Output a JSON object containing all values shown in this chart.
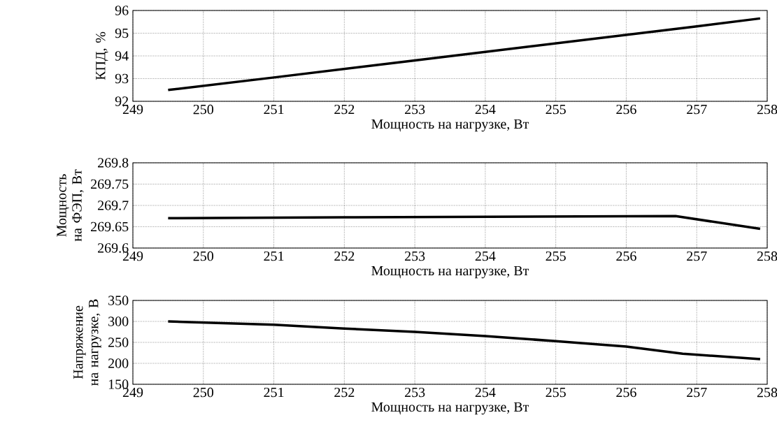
{
  "chart_data": [
    {
      "type": "line",
      "xlabel": "Мощность на нагрузке, Вт",
      "ylabel": "КПД, %",
      "color": "#000000",
      "grid": true,
      "x": [
        249.5,
        251,
        253,
        255,
        257,
        257.9
      ],
      "values": [
        92.5,
        93.05,
        93.8,
        94.55,
        95.3,
        95.65
      ],
      "xlim": [
        249,
        258
      ],
      "ylim": [
        92,
        96
      ],
      "xticks": [
        249,
        250,
        251,
        252,
        253,
        254,
        255,
        256,
        257,
        258
      ],
      "yticks": [
        92,
        93,
        94,
        95,
        96
      ]
    },
    {
      "type": "line",
      "xlabel": "Мощность на нагрузке, Вт",
      "ylabel": "Мощность на ФЭП, Вт",
      "color": "#000000",
      "grid": true,
      "x": [
        249.5,
        252,
        256.7,
        257.9
      ],
      "values": [
        269.67,
        269.672,
        269.675,
        269.645
      ],
      "xlim": [
        249,
        258
      ],
      "ylim": [
        269.6,
        269.8
      ],
      "xticks": [
        249,
        250,
        251,
        252,
        253,
        254,
        255,
        256,
        257,
        258
      ],
      "yticks": [
        269.6,
        269.65,
        269.7,
        269.75,
        269.8
      ]
    },
    {
      "type": "line",
      "xlabel": "Мощность на нагрузке, Вт",
      "ylabel": "Напряжение на нагрузке, В",
      "color": "#000000",
      "grid": true,
      "x": [
        249.5,
        251,
        252,
        253,
        254,
        255,
        256,
        256.8,
        257.9
      ],
      "values": [
        300,
        292,
        283,
        275,
        265,
        253,
        240,
        223,
        210
      ],
      "xlim": [
        249,
        258
      ],
      "ylim": [
        150,
        350
      ],
      "xticks": [
        249,
        250,
        251,
        252,
        253,
        254,
        255,
        256,
        257,
        258
      ],
      "yticks": [
        150,
        200,
        250,
        300,
        350
      ]
    }
  ]
}
